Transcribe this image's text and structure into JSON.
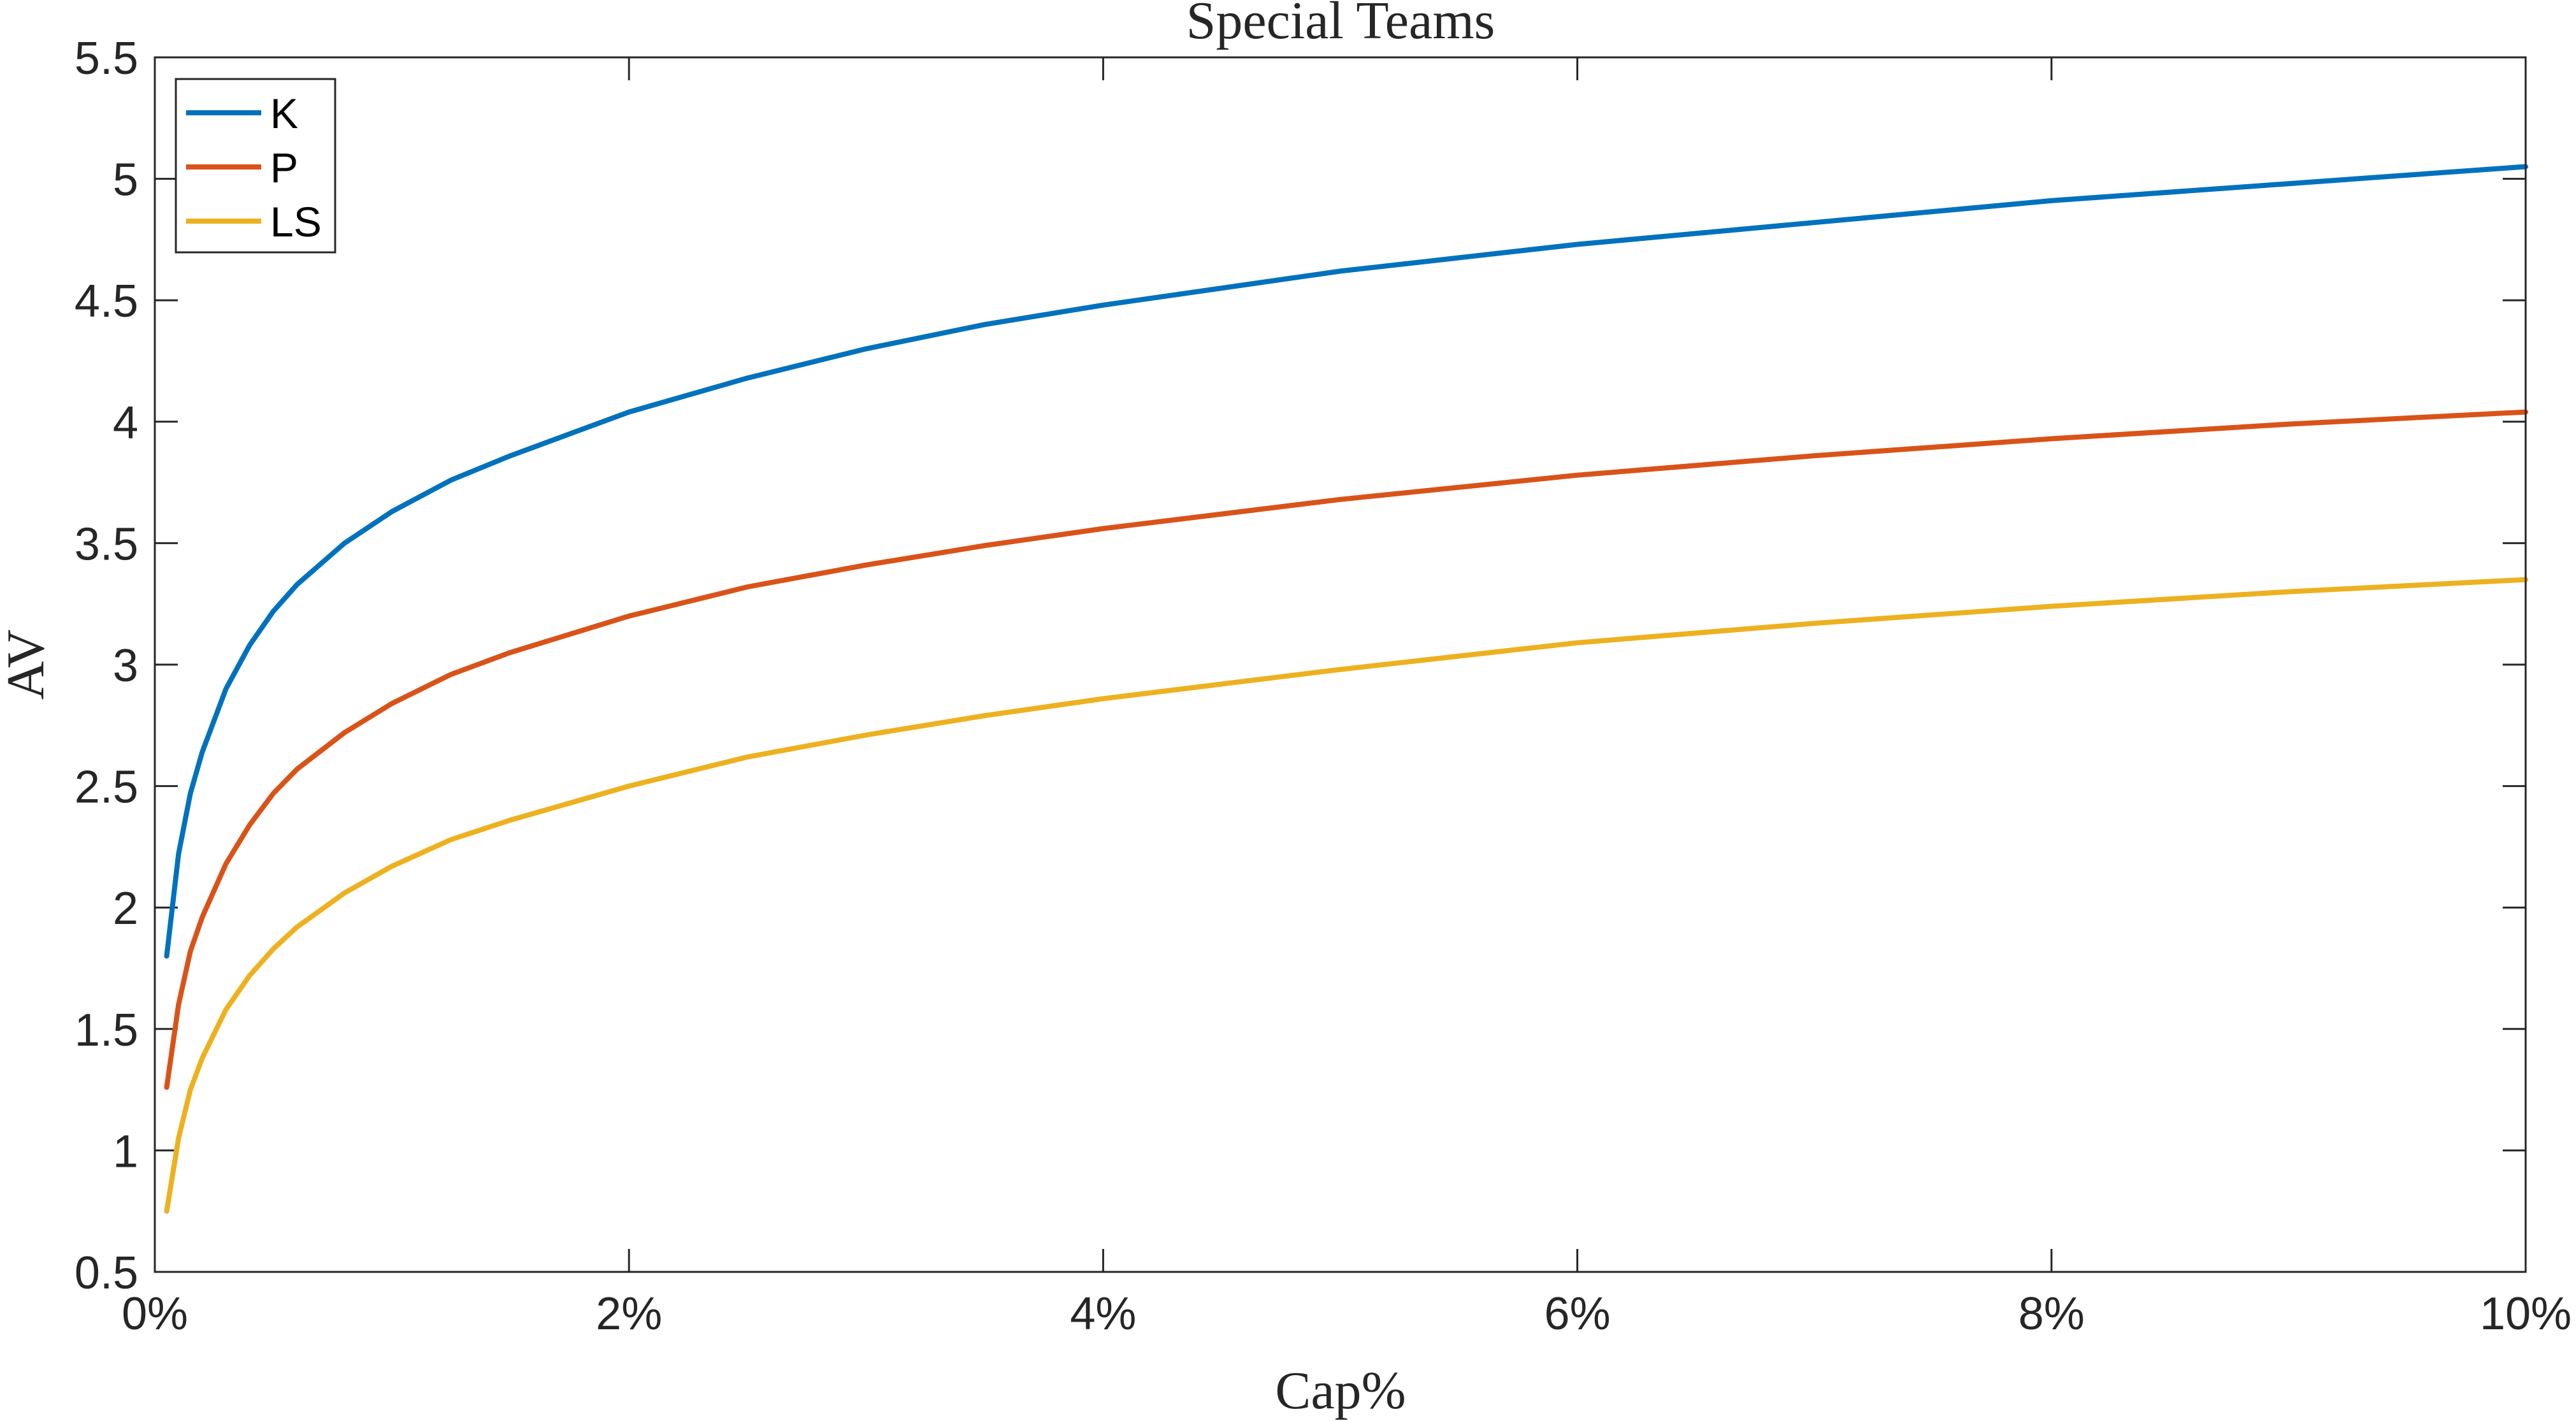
{
  "chart_data": {
    "type": "line",
    "title": "Special Teams",
    "xlabel": "Cap%",
    "ylabel": "AV",
    "xlim": [
      0,
      10
    ],
    "ylim": [
      0.5,
      5.5
    ],
    "xticks": [
      0,
      2,
      4,
      6,
      8,
      10
    ],
    "xtick_labels": [
      "0%",
      "2%",
      "4%",
      "6%",
      "8%",
      "10%"
    ],
    "yticks": [
      0.5,
      1,
      1.5,
      2,
      2.5,
      3,
      3.5,
      4,
      4.5,
      5,
      5.5
    ],
    "ytick_labels": [
      "0.5",
      "1",
      "1.5",
      "2",
      "2.5",
      "3",
      "3.5",
      "4",
      "4.5",
      "5",
      "5.5"
    ],
    "grid": false,
    "legend_position": "top-left",
    "x": [
      0.05,
      0.1,
      0.15,
      0.2,
      0.3,
      0.4,
      0.5,
      0.6,
      0.8,
      1,
      1.25,
      1.5,
      2,
      2.5,
      3,
      3.5,
      4,
      5,
      6,
      7,
      8,
      9,
      10
    ],
    "series": [
      {
        "name": "K",
        "color": "#0072BD",
        "values": [
          1.8,
          2.22,
          2.47,
          2.64,
          2.9,
          3.08,
          3.22,
          3.33,
          3.5,
          3.63,
          3.76,
          3.86,
          4.04,
          4.18,
          4.3,
          4.4,
          4.48,
          4.62,
          4.73,
          4.82,
          4.91,
          4.98,
          5.05
        ]
      },
      {
        "name": "P",
        "color": "#D95319",
        "values": [
          1.26,
          1.6,
          1.82,
          1.96,
          2.18,
          2.34,
          2.47,
          2.57,
          2.72,
          2.84,
          2.96,
          3.05,
          3.2,
          3.32,
          3.41,
          3.49,
          3.56,
          3.68,
          3.78,
          3.86,
          3.93,
          3.99,
          4.04
        ]
      },
      {
        "name": "LS",
        "color": "#EDB120",
        "values": [
          0.75,
          1.05,
          1.25,
          1.38,
          1.58,
          1.72,
          1.83,
          1.92,
          2.06,
          2.17,
          2.28,
          2.36,
          2.5,
          2.62,
          2.71,
          2.79,
          2.86,
          2.98,
          3.09,
          3.17,
          3.24,
          3.3,
          3.35
        ]
      }
    ]
  }
}
